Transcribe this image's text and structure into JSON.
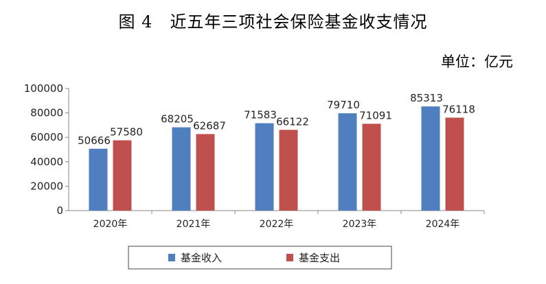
{
  "title": "图 4　近五年三项社会保险基金收支情况",
  "unit": "单位：亿元",
  "colors": {
    "income": "#4f7fbe",
    "expense": "#c0504d",
    "axis": "#888888"
  },
  "chart_data": {
    "type": "bar",
    "categories": [
      "2020年",
      "2021年",
      "2022年",
      "2023年",
      "2024年"
    ],
    "series": [
      {
        "name": "基金收入",
        "values": [
          50666,
          68205,
          71583,
          79710,
          85313
        ]
      },
      {
        "name": "基金支出",
        "values": [
          57580,
          62687,
          66122,
          71091,
          76118
        ]
      }
    ],
    "ylim": [
      0,
      100000
    ],
    "yticks": [
      0,
      20000,
      40000,
      60000,
      80000,
      100000
    ],
    "grid": false,
    "legend_position": "bottom"
  }
}
